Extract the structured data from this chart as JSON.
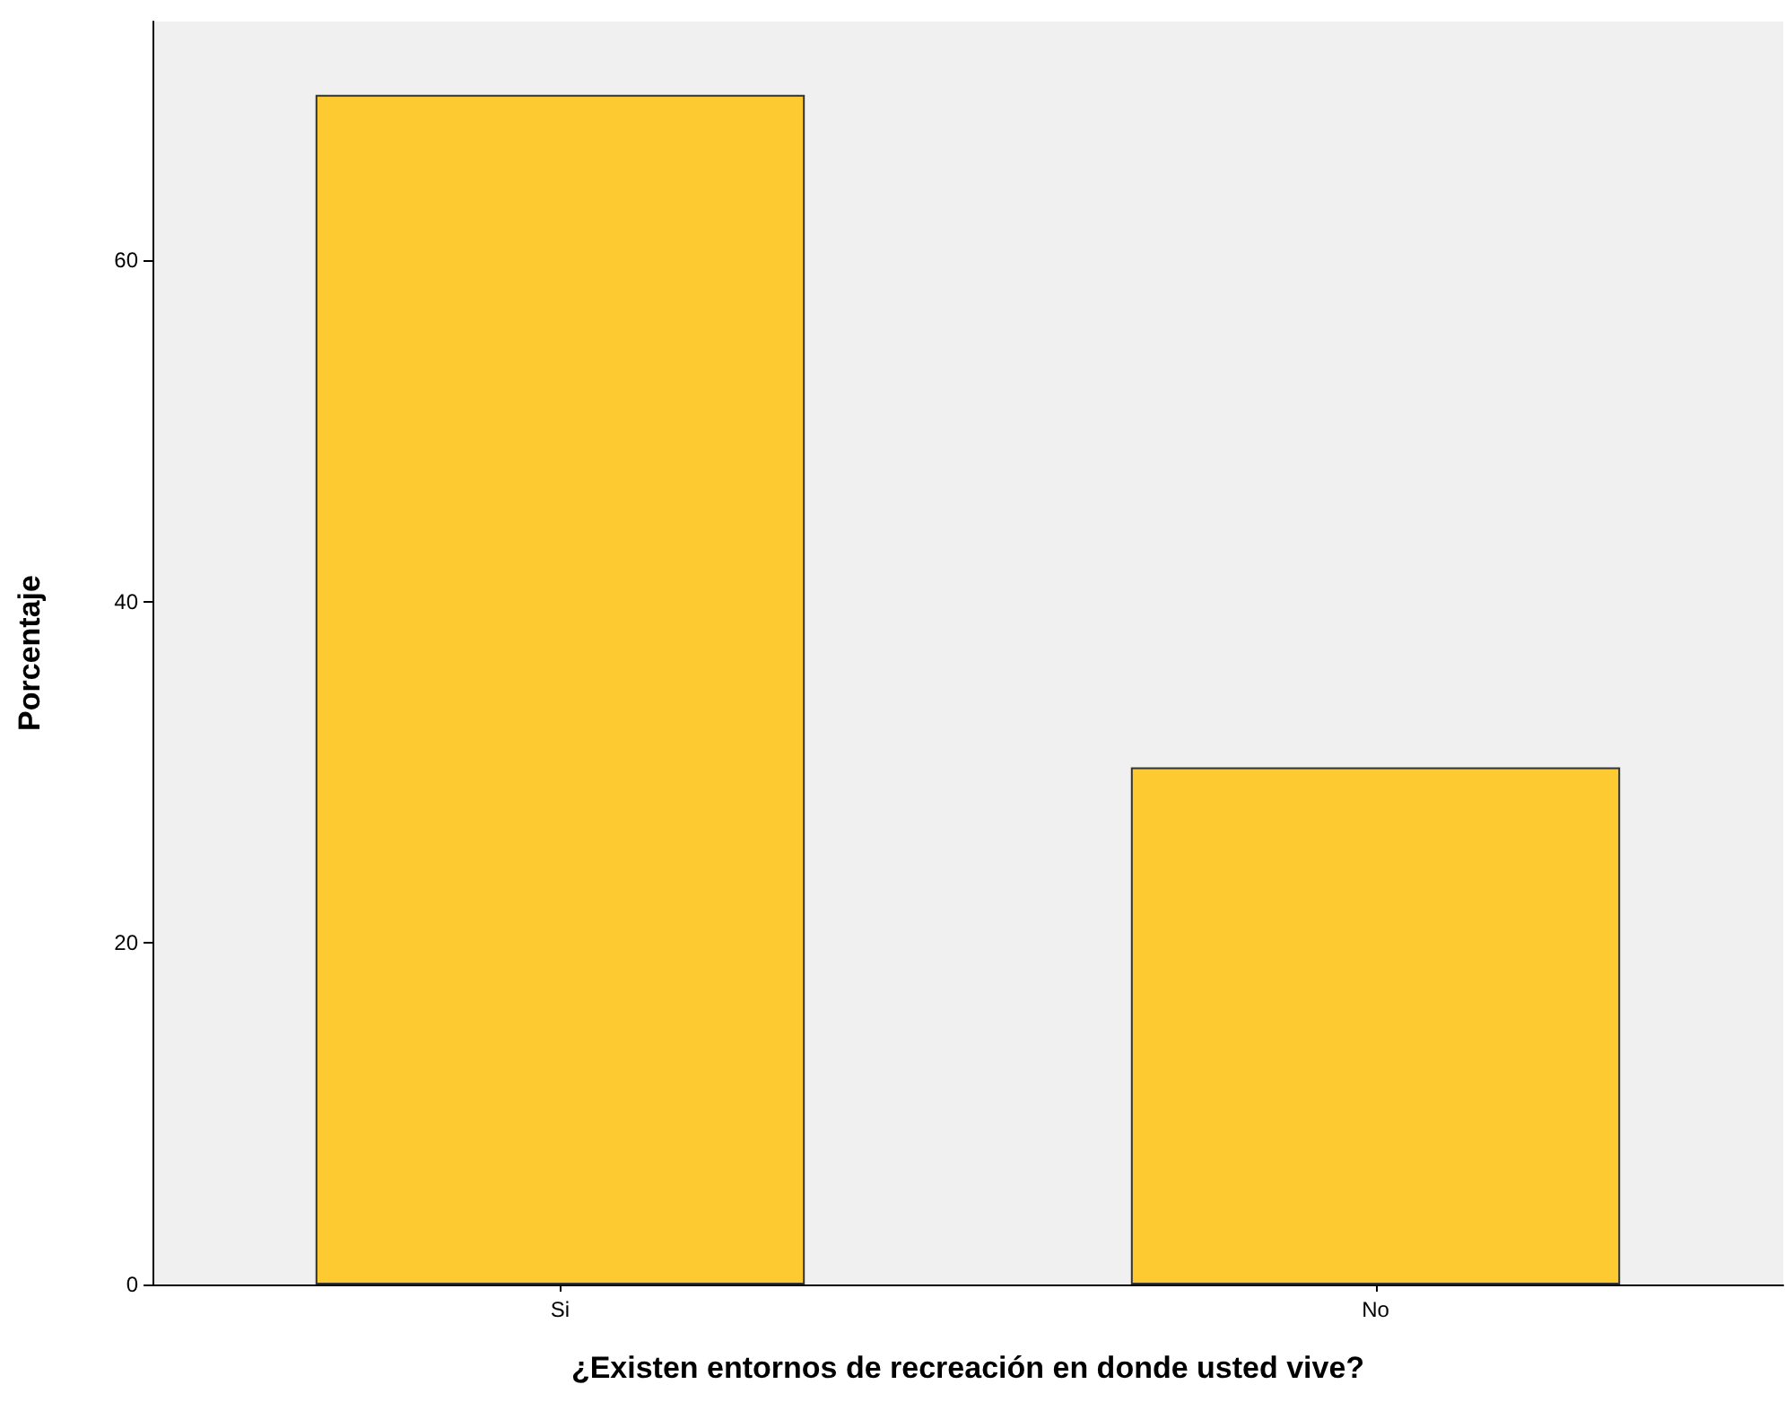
{
  "chart_data": {
    "type": "bar",
    "xlabel": "¿Existen entornos de recreación en donde usted vive?",
    "ylabel": "Porcentaje",
    "categories": [
      "Si",
      "No"
    ],
    "values": [
      69.7,
      30.3
    ],
    "color": "#fdca31",
    "ylim": [
      0,
      74
    ],
    "yticks": [
      0,
      20,
      40,
      60
    ],
    "grid": false
  }
}
